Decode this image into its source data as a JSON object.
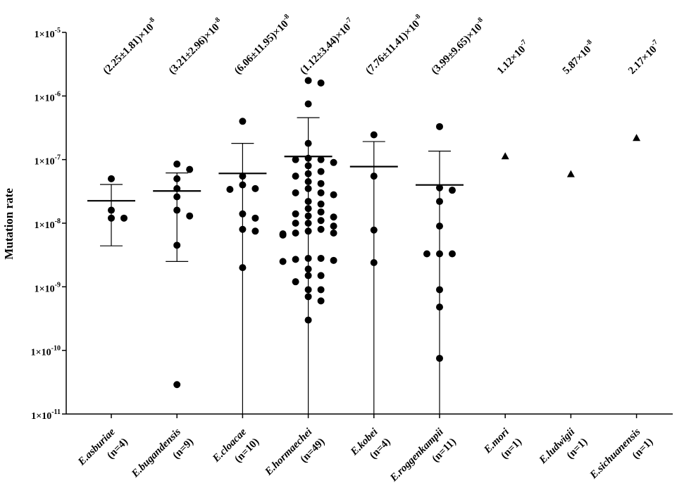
{
  "chart_data": {
    "type": "scatter",
    "title": "",
    "xlabel": "",
    "ylabel": "Mutation rate",
    "yscale": "log",
    "ylim": [
      1e-11,
      1e-05
    ],
    "y_ticks": [
      {
        "value": 1e-05,
        "base": "1×10",
        "exp": "-5"
      },
      {
        "value": 1e-06,
        "base": "1×10",
        "exp": "-6"
      },
      {
        "value": 1e-07,
        "base": "1×10",
        "exp": "-7"
      },
      {
        "value": 1e-08,
        "base": "1×10",
        "exp": "-8"
      },
      {
        "value": 1e-09,
        "base": "1×10",
        "exp": "-9"
      },
      {
        "value": 1e-10,
        "base": "1×10",
        "exp": "-10"
      },
      {
        "value": 1e-11,
        "base": "1×10",
        "exp": "-11"
      }
    ],
    "grid": false,
    "categories": [
      {
        "name": "E.asburiae",
        "n_label": "(n=4)",
        "annotation": "(2.25±1.81)×10",
        "annotation_exp": "-8",
        "marker": "circle",
        "mean": 2.25e-08,
        "error_low": 4.4e-09,
        "error_high": 4.06e-08,
        "points": [
          5e-08,
          1.6e-08,
          1.2e-08,
          1.2e-08
        ]
      },
      {
        "name": "E.bugandensis",
        "n_label": "(n=9)",
        "annotation": "(3.21±2.96)×10",
        "annotation_exp": "-8",
        "marker": "circle",
        "mean": 3.21e-08,
        "error_low": 2.5e-09,
        "error_high": 6.17e-08,
        "points": [
          8.5e-08,
          7e-08,
          5e-08,
          3.5e-08,
          2.6e-08,
          1.6e-08,
          1.3e-08,
          4.5e-09,
          2.9e-11
        ]
      },
      {
        "name": "E.cloacae",
        "n_label": "(n=10)",
        "annotation": "(6.06±11.95)×10",
        "annotation_exp": "-8",
        "marker": "circle",
        "mean": 6.06e-08,
        "error_low": 1e-11,
        "error_high": 1.8e-07,
        "points": [
          4e-07,
          5.5e-08,
          4e-08,
          3.5e-08,
          3.4e-08,
          1.4e-08,
          1.2e-08,
          8e-09,
          7.5e-09,
          2e-09
        ]
      },
      {
        "name": "E.hormaechei",
        "n_label": "(n=49)",
        "annotation": "(1.12±3.44)×10",
        "annotation_exp": "-7",
        "marker": "circle",
        "mean": 1.12e-07,
        "error_low": 1e-11,
        "error_high": 4.56e-07,
        "points": [
          1.75e-06,
          1.6e-06,
          7.5e-07,
          1.8e-07,
          1.05e-07,
          1e-07,
          1e-07,
          9e-08,
          8e-08,
          6.5e-08,
          6e-08,
          5.5e-08,
          4.5e-08,
          4.2e-08,
          3.5e-08,
          3e-08,
          3e-08,
          2.8e-08,
          2.2e-08,
          2e-08,
          1.7e-08,
          1.5e-08,
          1.4e-08,
          1.3e-08,
          1.25e-08,
          1.1e-08,
          1e-08,
          1e-08,
          9e-09,
          8e-09,
          7.5e-09,
          7e-09,
          7e-09,
          6.8e-09,
          6.5e-09,
          2.8e-09,
          2.8e-09,
          2.7e-09,
          2.6e-09,
          2.5e-09,
          1.9e-09,
          1.5e-09,
          1.5e-09,
          1.2e-09,
          9e-10,
          9e-10,
          7e-10,
          6e-10,
          3e-10
        ]
      },
      {
        "name": "E.kobei",
        "n_label": "(n=4)",
        "annotation": "(7.76±11.41)×10",
        "annotation_exp": "-8",
        "marker": "circle",
        "mean": 7.76e-08,
        "error_low": 1e-11,
        "error_high": 1.92e-07,
        "points": [
          2.45e-07,
          5.5e-08,
          7.8e-09,
          2.4e-09
        ]
      },
      {
        "name": "E.roggenkampii",
        "n_label": "(n=11)",
        "annotation": "(3.99±9.65)×10",
        "annotation_exp": "-8",
        "marker": "circle",
        "mean": 3.99e-08,
        "error_low": 1e-11,
        "error_high": 1.36e-07,
        "points": [
          3.3e-07,
          3.6e-08,
          3.3e-08,
          2.2e-08,
          9e-09,
          3.3e-09,
          3.3e-09,
          3.3e-09,
          9e-10,
          4.8e-10,
          7.5e-11
        ]
      },
      {
        "name": "E.mori",
        "n_label": "(n=1)",
        "annotation": "1.12×10",
        "annotation_exp": "-7",
        "marker": "triangle",
        "points": [
          1.12e-07
        ]
      },
      {
        "name": "E.ludwigii",
        "n_label": "(n=1)",
        "annotation": "5.87×10",
        "annotation_exp": "-8",
        "marker": "triangle",
        "points": [
          5.87e-08
        ]
      },
      {
        "name": "E.sichuanensis",
        "n_label": "(n=1)",
        "annotation": "2.17×10",
        "annotation_exp": "-7",
        "marker": "triangle",
        "points": [
          2.17e-07
        ]
      }
    ]
  }
}
